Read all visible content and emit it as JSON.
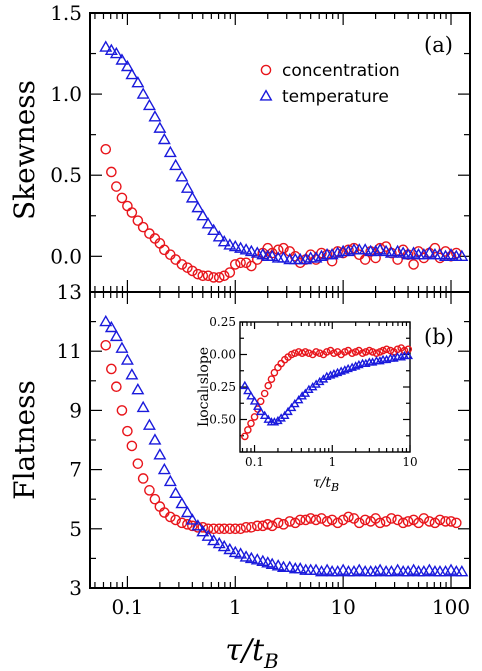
{
  "colors": {
    "concentration": "#e8151b",
    "temperature": "#1a1adc",
    "axis": "#000000"
  },
  "x_label_main": "τ/t",
  "x_label_sub": "B",
  "chart_data": [
    {
      "type": "scatter",
      "panel_label": "(a)",
      "ylabel": "Skewness",
      "xscale": "log",
      "xlim": [
        0.045,
        150
      ],
      "ylim": [
        -0.22,
        1.5
      ],
      "yticks": [
        0.0,
        0.5,
        1.0,
        1.5
      ],
      "ytick_labels": [
        "0.0",
        "0.5",
        "1.0",
        "1.5"
      ],
      "xtick_labels": [],
      "legend": "top-right",
      "series": [
        {
          "name": "concentration",
          "marker": "circle",
          "x": [
            0.063,
            0.071,
            0.079,
            0.089,
            0.1,
            0.11,
            0.125,
            0.14,
            0.16,
            0.18,
            0.2,
            0.22,
            0.25,
            0.28,
            0.32,
            0.36,
            0.4,
            0.45,
            0.5,
            0.56,
            0.63,
            0.71,
            0.79,
            0.89,
            1.0,
            1.12,
            1.26,
            1.41,
            1.6,
            1.8,
            2.0,
            2.2,
            2.5,
            2.8,
            3.2,
            3.6,
            4.0,
            4.5,
            5.0,
            5.6,
            6.3,
            7.1,
            7.9,
            8.9,
            10,
            11.2,
            12.6,
            14.1,
            16,
            18,
            20,
            22,
            25,
            28,
            32,
            36,
            40,
            45,
            50,
            56,
            63,
            71,
            79,
            89,
            100,
            112
          ],
          "y": [
            0.66,
            0.52,
            0.43,
            0.36,
            0.31,
            0.27,
            0.22,
            0.18,
            0.14,
            0.11,
            0.08,
            0.04,
            0.01,
            -0.02,
            -0.05,
            -0.07,
            -0.09,
            -0.11,
            -0.12,
            -0.12,
            -0.13,
            -0.13,
            -0.12,
            -0.1,
            -0.05,
            -0.04,
            -0.04,
            -0.06,
            -0.02,
            0.02,
            0.05,
            0.02,
            0.04,
            0.05,
            0.03,
            0.0,
            -0.04,
            -0.02,
            0.01,
            -0.02,
            0.02,
            0.01,
            -0.03,
            0.03,
            0.02,
            0.04,
            0.05,
            0.01,
            -0.02,
            0.03,
            -0.01,
            0.05,
            0.06,
            0.02,
            -0.02,
            0.04,
            0.01,
            -0.05,
            0.03,
            -0.01,
            0.02,
            0.05,
            -0.01,
            0.03,
            0.0,
            0.02
          ]
        },
        {
          "name": "temperature",
          "marker": "triangle",
          "x": [
            0.063,
            0.071,
            0.079,
            0.089,
            0.1,
            0.11,
            0.125,
            0.14,
            0.16,
            0.18,
            0.2,
            0.22,
            0.25,
            0.28,
            0.32,
            0.36,
            0.4,
            0.45,
            0.5,
            0.56,
            0.63,
            0.71,
            0.79,
            0.89,
            1.0,
            1.12,
            1.26,
            1.41,
            1.6,
            1.8,
            2.0,
            2.2,
            2.5,
            2.8,
            3.2,
            3.6,
            4.0,
            4.5,
            5.0,
            5.6,
            6.3,
            7.1,
            7.9,
            8.9,
            10,
            11.2,
            12.6,
            14.1,
            16,
            18,
            20,
            22,
            25,
            28,
            32,
            36,
            40,
            45,
            50,
            56,
            63,
            71,
            79,
            89,
            100,
            112,
            126
          ],
          "y": [
            1.29,
            1.27,
            1.25,
            1.21,
            1.17,
            1.12,
            1.07,
            1.0,
            0.93,
            0.86,
            0.79,
            0.72,
            0.64,
            0.56,
            0.49,
            0.42,
            0.36,
            0.3,
            0.25,
            0.2,
            0.16,
            0.12,
            0.09,
            0.07,
            0.06,
            0.05,
            0.04,
            0.03,
            0.02,
            0.01,
            0.0,
            0.0,
            -0.01,
            -0.01,
            -0.02,
            -0.02,
            -0.02,
            -0.02,
            -0.01,
            -0.01,
            0.0,
            0.01,
            0.01,
            0.02,
            0.03,
            0.03,
            0.04,
            0.04,
            0.04,
            0.03,
            0.03,
            0.04,
            0.03,
            0.02,
            0.03,
            0.02,
            0.01,
            0.02,
            0.01,
            0.01,
            0.02,
            0.01,
            0.01,
            0.0,
            0.01,
            0.0,
            0.0
          ]
        }
      ]
    },
    {
      "type": "scatter",
      "panel_label": "(b)",
      "ylabel": "Flatness",
      "xscale": "log",
      "xlim": [
        0.045,
        150
      ],
      "ylim": [
        3,
        13
      ],
      "yticks": [
        3,
        5,
        7,
        9,
        11,
        13
      ],
      "ytick_labels": [
        "3",
        "5",
        "7",
        "9",
        "11",
        "13"
      ],
      "xtick_labels": [
        "0.1",
        "1",
        "10",
        "100"
      ],
      "xticks": [
        0.1,
        1,
        10,
        100
      ],
      "series": [
        {
          "name": "concentration",
          "marker": "circle",
          "x": [
            0.063,
            0.071,
            0.079,
            0.089,
            0.1,
            0.11,
            0.125,
            0.14,
            0.16,
            0.18,
            0.2,
            0.22,
            0.25,
            0.28,
            0.32,
            0.36,
            0.4,
            0.45,
            0.5,
            0.56,
            0.63,
            0.71,
            0.79,
            0.89,
            1.0,
            1.12,
            1.26,
            1.41,
            1.6,
            1.8,
            2.0,
            2.2,
            2.5,
            2.8,
            3.2,
            3.6,
            4.0,
            4.5,
            5.0,
            5.6,
            6.3,
            7.1,
            7.9,
            8.9,
            10,
            11.2,
            12.6,
            14.1,
            16,
            18,
            20,
            22,
            25,
            28,
            32,
            36,
            40,
            45,
            50,
            56,
            63,
            71,
            79,
            89,
            100,
            112
          ],
          "y": [
            11.2,
            10.4,
            9.8,
            9.0,
            8.3,
            7.8,
            7.2,
            6.7,
            6.3,
            6.0,
            5.75,
            5.55,
            5.4,
            5.3,
            5.2,
            5.15,
            5.1,
            5.05,
            5.05,
            5.0,
            5.0,
            5.0,
            5.0,
            5.0,
            5.0,
            5.0,
            5.05,
            5.05,
            5.1,
            5.1,
            5.15,
            5.1,
            5.2,
            5.15,
            5.25,
            5.2,
            5.3,
            5.3,
            5.35,
            5.3,
            5.35,
            5.25,
            5.3,
            5.2,
            5.3,
            5.4,
            5.35,
            5.2,
            5.3,
            5.25,
            5.35,
            5.2,
            5.25,
            5.35,
            5.3,
            5.2,
            5.25,
            5.3,
            5.2,
            5.35,
            5.25,
            5.2,
            5.3,
            5.25,
            5.25,
            5.2
          ]
        },
        {
          "name": "temperature",
          "marker": "triangle",
          "x": [
            0.063,
            0.071,
            0.079,
            0.089,
            0.1,
            0.11,
            0.125,
            0.14,
            0.16,
            0.18,
            0.2,
            0.22,
            0.25,
            0.28,
            0.32,
            0.36,
            0.4,
            0.45,
            0.5,
            0.56,
            0.63,
            0.71,
            0.79,
            0.89,
            1.0,
            1.12,
            1.26,
            1.41,
            1.6,
            1.8,
            2.0,
            2.2,
            2.5,
            2.8,
            3.2,
            3.6,
            4.0,
            4.5,
            5.0,
            5.6,
            6.3,
            7.1,
            7.9,
            8.9,
            10,
            11.2,
            12.6,
            14.1,
            16,
            18,
            20,
            22,
            25,
            28,
            32,
            36,
            40,
            45,
            50,
            56,
            63,
            71,
            79,
            89,
            100,
            112,
            126
          ],
          "y": [
            12.0,
            11.8,
            11.5,
            11.1,
            10.7,
            10.2,
            9.7,
            9.1,
            8.5,
            8.0,
            7.5,
            7.0,
            6.6,
            6.2,
            5.85,
            5.55,
            5.3,
            5.1,
            4.9,
            4.75,
            4.6,
            4.5,
            4.4,
            4.3,
            4.2,
            4.15,
            4.05,
            4.0,
            3.95,
            3.9,
            3.85,
            3.8,
            3.75,
            3.7,
            3.7,
            3.65,
            3.65,
            3.6,
            3.6,
            3.6,
            3.55,
            3.6,
            3.55,
            3.55,
            3.6,
            3.55,
            3.55,
            3.6,
            3.55,
            3.55,
            3.55,
            3.6,
            3.55,
            3.55,
            3.6,
            3.55,
            3.55,
            3.6,
            3.55,
            3.55,
            3.6,
            3.55,
            3.55,
            3.55,
            3.6,
            3.55,
            3.55
          ]
        }
      ]
    },
    {
      "type": "scatter",
      "inset": true,
      "ylabel": "Local slope",
      "xlabel": "τ/t",
      "xlabel_sub": "B",
      "xscale": "log",
      "xlim": [
        0.065,
        10
      ],
      "ylim": [
        -0.75,
        0.25
      ],
      "yticks": [
        -0.75,
        -0.5,
        -0.25,
        0.0,
        0.25
      ],
      "ytick_labels": [
        "−0.75",
        "−0.50",
        "−0.25",
        "0.00",
        "0.25"
      ],
      "xticks": [
        0.1,
        1,
        10
      ],
      "xtick_labels": [
        "0.1",
        "1",
        "10"
      ],
      "series": [
        {
          "name": "concentration",
          "marker": "circle",
          "x": [
            0.075,
            0.082,
            0.09,
            0.1,
            0.11,
            0.12,
            0.135,
            0.15,
            0.165,
            0.18,
            0.2,
            0.22,
            0.245,
            0.27,
            0.3,
            0.33,
            0.37,
            0.41,
            0.45,
            0.5,
            0.56,
            0.62,
            0.69,
            0.77,
            0.85,
            0.95,
            1.05,
            1.17,
            1.3,
            1.45,
            1.6,
            1.8,
            2.0,
            2.2,
            2.45,
            2.7,
            3.0,
            3.3,
            3.7,
            4.1,
            4.5,
            5.0,
            5.6,
            6.2,
            6.9,
            7.7,
            8.5,
            9.5
          ],
          "y": [
            -0.63,
            -0.58,
            -0.53,
            -0.48,
            -0.42,
            -0.36,
            -0.3,
            -0.24,
            -0.19,
            -0.14,
            -0.1,
            -0.07,
            -0.04,
            -0.02,
            0.0,
            0.01,
            0.02,
            0.01,
            0.02,
            0.01,
            0.0,
            0.02,
            0.01,
            0.0,
            0.02,
            0.03,
            0.01,
            0.02,
            0.0,
            0.02,
            0.03,
            0.01,
            0.02,
            0.03,
            0.01,
            0.02,
            0.03,
            0.02,
            0.01,
            0.02,
            0.03,
            0.04,
            0.03,
            0.02,
            0.04,
            0.05,
            0.03,
            0.04
          ]
        },
        {
          "name": "temperature",
          "marker": "triangle",
          "x": [
            0.075,
            0.082,
            0.09,
            0.1,
            0.11,
            0.12,
            0.135,
            0.15,
            0.165,
            0.18,
            0.2,
            0.22,
            0.245,
            0.27,
            0.3,
            0.33,
            0.37,
            0.41,
            0.45,
            0.5,
            0.56,
            0.62,
            0.69,
            0.77,
            0.85,
            0.95,
            1.05,
            1.17,
            1.3,
            1.45,
            1.6,
            1.8,
            2.0,
            2.2,
            2.45,
            2.7,
            3.0,
            3.3,
            3.7,
            4.1,
            4.5,
            5.0,
            5.6,
            6.2,
            6.9,
            7.7,
            8.5,
            9.5
          ],
          "y": [
            -0.24,
            -0.28,
            -0.32,
            -0.36,
            -0.4,
            -0.44,
            -0.47,
            -0.5,
            -0.52,
            -0.52,
            -0.51,
            -0.49,
            -0.47,
            -0.44,
            -0.41,
            -0.38,
            -0.35,
            -0.32,
            -0.3,
            -0.27,
            -0.25,
            -0.23,
            -0.21,
            -0.19,
            -0.17,
            -0.16,
            -0.15,
            -0.14,
            -0.13,
            -0.12,
            -0.11,
            -0.1,
            -0.09,
            -0.08,
            -0.07,
            -0.07,
            -0.06,
            -0.06,
            -0.05,
            -0.05,
            -0.04,
            -0.04,
            -0.03,
            -0.03,
            -0.02,
            -0.02,
            -0.01,
            -0.01
          ]
        }
      ]
    }
  ]
}
